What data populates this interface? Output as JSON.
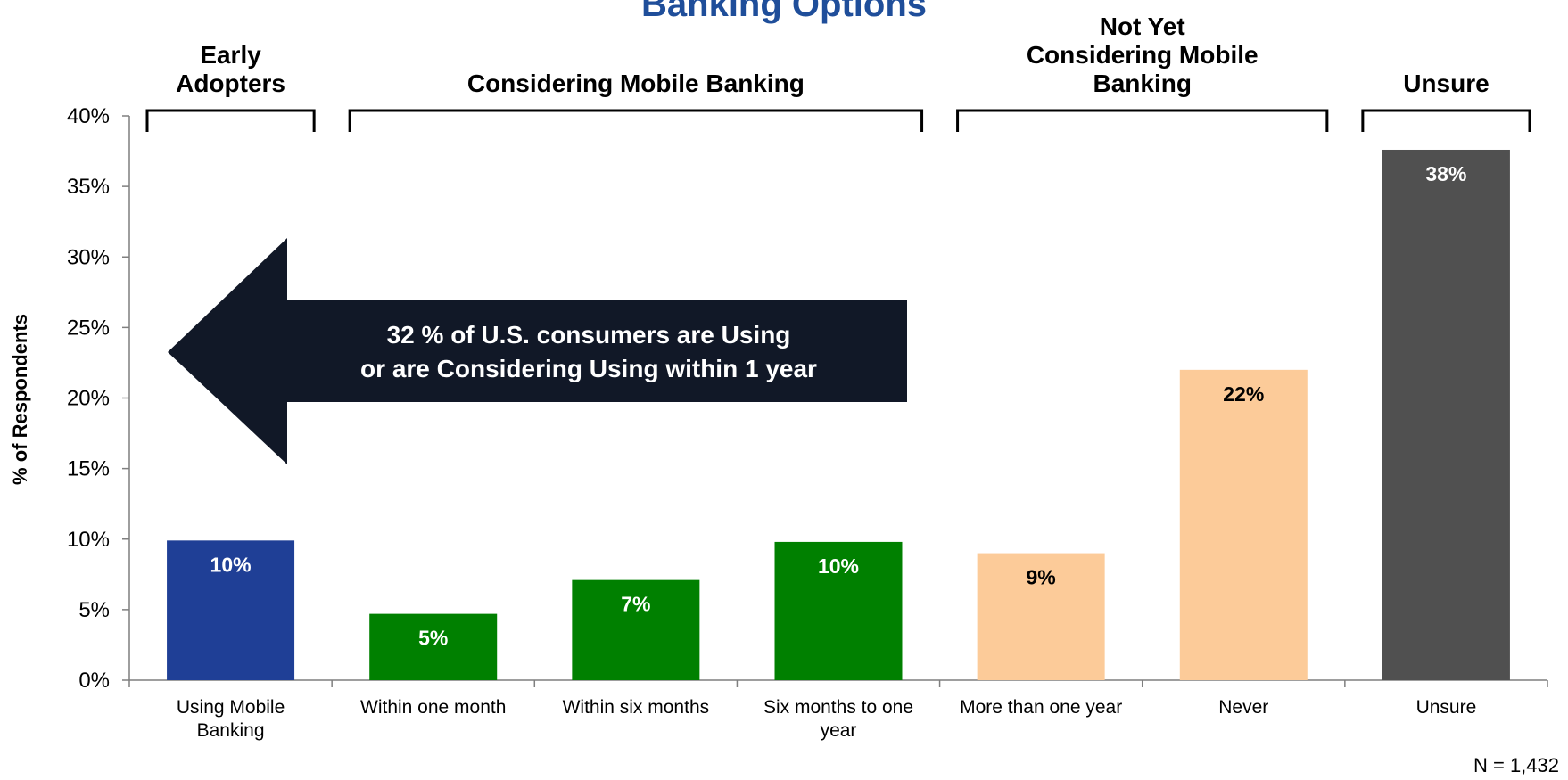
{
  "title": "Banking Options",
  "note": "N = 1,432",
  "callout": {
    "line1": "32 % of U.S. consumers are Using",
    "line2": "or are Considering Using within 1 year"
  },
  "groups": [
    {
      "lines": [
        "Early",
        "Adopters"
      ],
      "from": 0,
      "to": 0
    },
    {
      "lines": [
        "Considering Mobile Banking"
      ],
      "from": 1,
      "to": 3
    },
    {
      "lines": [
        "Not  Yet",
        "Considering Mobile",
        "Banking"
      ],
      "from": 4,
      "to": 5
    },
    {
      "lines": [
        "Unsure"
      ],
      "from": 6,
      "to": 6
    }
  ],
  "colors": {
    "title": "#1F4E9A",
    "early": "#1F3F96",
    "considering": "#008000",
    "not_yet": "#FCCB99",
    "unsure": "#505050",
    "callout_arrow": "#111827"
  },
  "chart_data": {
    "type": "bar",
    "title": "",
    "xlabel": "",
    "ylabel": "% of Respondents",
    "ylim": [
      0,
      40
    ],
    "yticks": [
      0,
      5,
      10,
      15,
      20,
      25,
      30,
      35,
      40
    ],
    "ytick_labels": [
      "0%",
      "5%",
      "10%",
      "15%",
      "20%",
      "25%",
      "30%",
      "35%",
      "40%"
    ],
    "categories": [
      [
        "Using Mobile",
        "Banking"
      ],
      [
        "Within one month"
      ],
      [
        "Within six months"
      ],
      [
        "Six months to one",
        "year"
      ],
      [
        "More than one year"
      ],
      [
        "Never"
      ],
      [
        "Unsure"
      ]
    ],
    "values": [
      9.9,
      4.7,
      7.1,
      9.8,
      9.0,
      22.0,
      37.6
    ],
    "data_labels": [
      "10%",
      "5%",
      "7%",
      "10%",
      "9%",
      "22%",
      "38%"
    ],
    "bar_colors": [
      "early",
      "considering",
      "considering",
      "considering",
      "not_yet",
      "not_yet",
      "unsure"
    ],
    "label_colors": [
      "#ffffff",
      "#ffffff",
      "#ffffff",
      "#ffffff",
      "#000000",
      "#000000",
      "#ffffff"
    ],
    "grid": false,
    "legend": "none"
  }
}
